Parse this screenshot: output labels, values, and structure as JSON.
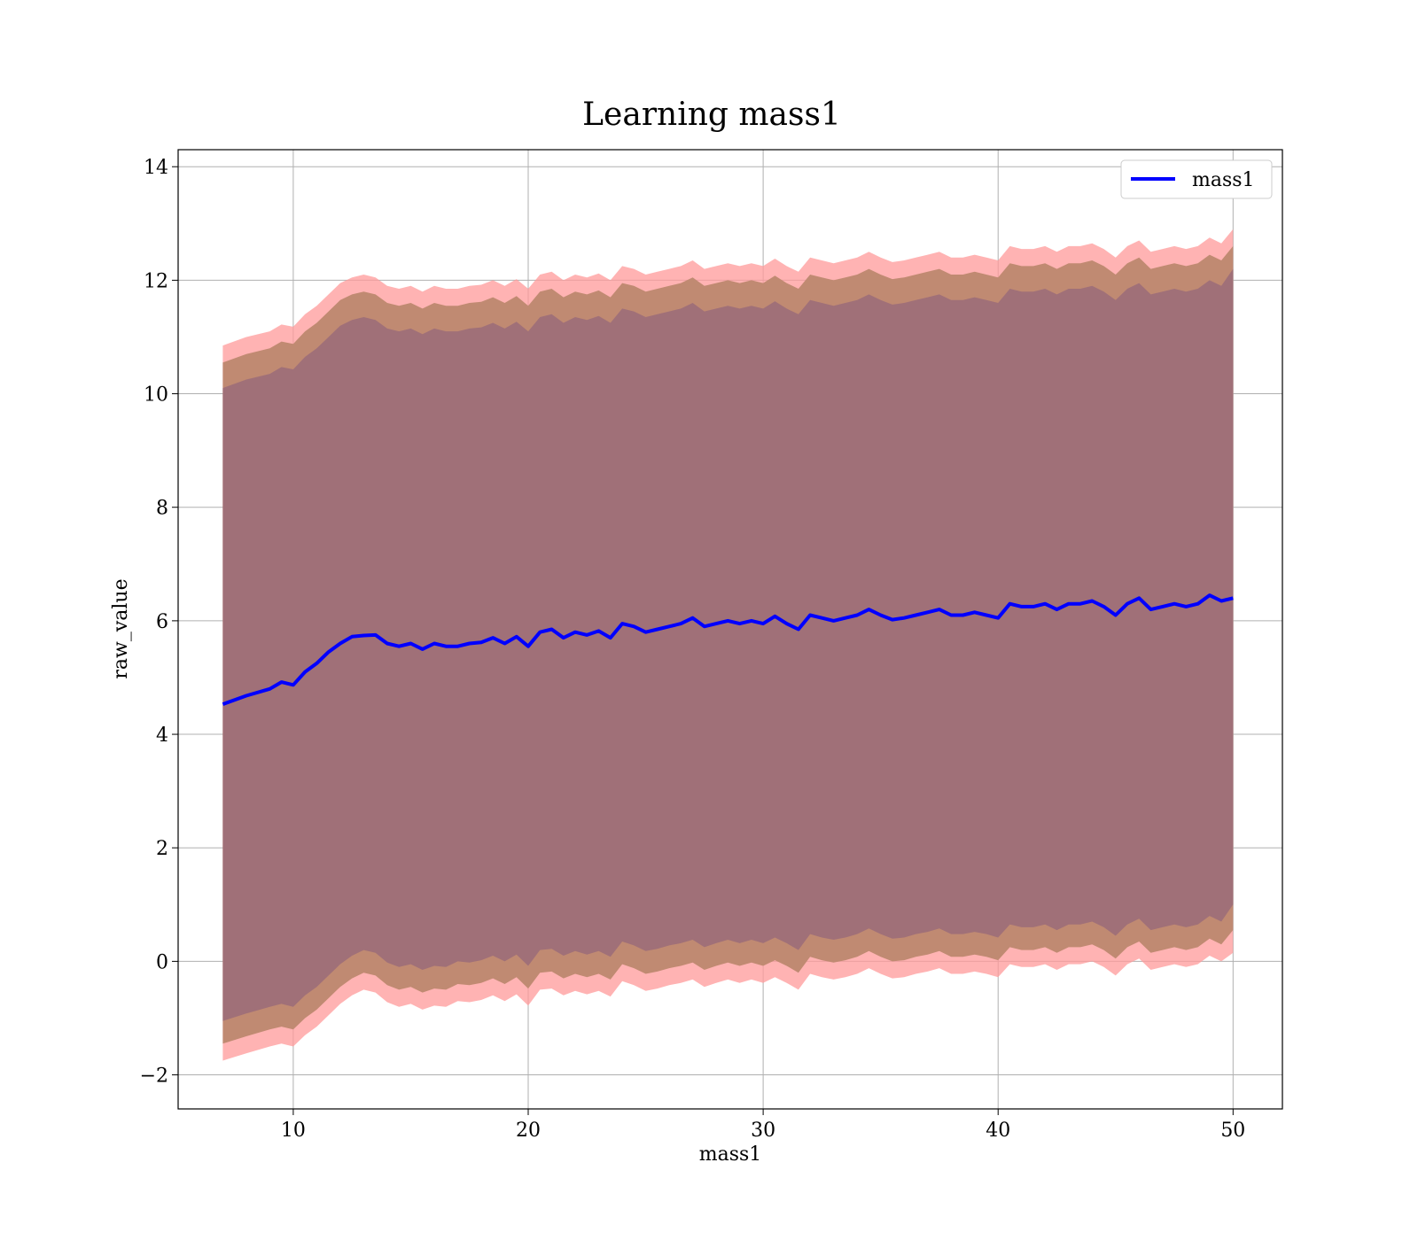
{
  "chart_data": {
    "type": "line",
    "title": "Learning mass1",
    "xlabel": "mass1",
    "ylabel": "raw_value",
    "xlim": [
      5.1,
      52.1
    ],
    "ylim": [
      -2.6,
      14.3
    ],
    "xticks": [
      10,
      20,
      30,
      40,
      50
    ],
    "yticks": [
      -2,
      0,
      2,
      4,
      6,
      8,
      10,
      12,
      14
    ],
    "xtick_labels": [
      "10",
      "20",
      "30",
      "40",
      "50"
    ],
    "ytick_labels": [
      "−2",
      "0",
      "2",
      "4",
      "6",
      "8",
      "10",
      "12",
      "14"
    ],
    "grid": true,
    "legend": {
      "position": "top-right",
      "entries": [
        "mass1"
      ]
    },
    "colors": {
      "line": "#0000ff",
      "outer_band": "#ff9999",
      "middle_band": "#c08a72",
      "inner_band": "#a07078"
    },
    "x": [
      7,
      8,
      9,
      9.5,
      10,
      10.5,
      11,
      11.5,
      12,
      12.5,
      13,
      13.5,
      14,
      14.5,
      15,
      15.5,
      16,
      16.5,
      17,
      17.5,
      18,
      18.5,
      19,
      19.5,
      20,
      20.5,
      21,
      21.5,
      22,
      22.5,
      23,
      23.5,
      24,
      24.5,
      25,
      25.5,
      26,
      26.5,
      27,
      27.5,
      28,
      28.5,
      29,
      29.5,
      30,
      30.5,
      31,
      31.5,
      32,
      32.5,
      33,
      33.5,
      34,
      34.5,
      35,
      35.5,
      36,
      36.5,
      37,
      37.5,
      38,
      38.5,
      39,
      39.5,
      40,
      40.5,
      41,
      41.5,
      42,
      42.5,
      43,
      43.5,
      44,
      44.5,
      45,
      45.5,
      46,
      46.5,
      47,
      47.5,
      48,
      48.5,
      49,
      49.5,
      50
    ],
    "series": [
      {
        "name": "mass1",
        "values": [
          4.53,
          4.68,
          4.8,
          4.92,
          4.87,
          5.1,
          5.25,
          5.45,
          5.6,
          5.72,
          5.74,
          5.75,
          5.6,
          5.55,
          5.6,
          5.5,
          5.6,
          5.55,
          5.55,
          5.6,
          5.62,
          5.7,
          5.6,
          5.72,
          5.55,
          5.8,
          5.85,
          5.7,
          5.8,
          5.75,
          5.82,
          5.7,
          5.95,
          5.9,
          5.8,
          5.85,
          5.9,
          5.95,
          6.05,
          5.9,
          5.95,
          6.0,
          5.95,
          6.0,
          5.95,
          6.08,
          5.95,
          5.85,
          6.1,
          6.05,
          6.0,
          6.05,
          6.1,
          6.2,
          6.1,
          6.02,
          6.05,
          6.1,
          6.15,
          6.2,
          6.1,
          6.1,
          6.15,
          6.1,
          6.05,
          6.3,
          6.25,
          6.25,
          6.3,
          6.2,
          6.3,
          6.3,
          6.35,
          6.25,
          6.1,
          6.3,
          6.4,
          6.2,
          6.25,
          6.3,
          6.25,
          6.3,
          6.45,
          6.35,
          6.4
        ]
      }
    ],
    "bands": [
      {
        "lower": [
          -1.75,
          -1.62,
          -1.5,
          -1.45,
          -1.5,
          -1.3,
          -1.15,
          -0.95,
          -0.75,
          -0.6,
          -0.5,
          -0.55,
          -0.72,
          -0.8,
          -0.75,
          -0.85,
          -0.78,
          -0.8,
          -0.7,
          -0.72,
          -0.68,
          -0.6,
          -0.7,
          -0.58,
          -0.78,
          -0.5,
          -0.48,
          -0.6,
          -0.52,
          -0.58,
          -0.52,
          -0.62,
          -0.35,
          -0.42,
          -0.52,
          -0.48,
          -0.42,
          -0.38,
          -0.32,
          -0.45,
          -0.38,
          -0.32,
          -0.38,
          -0.32,
          -0.38,
          -0.28,
          -0.38,
          -0.5,
          -0.22,
          -0.28,
          -0.32,
          -0.28,
          -0.22,
          -0.12,
          -0.22,
          -0.3,
          -0.28,
          -0.22,
          -0.18,
          -0.12,
          -0.22,
          -0.22,
          -0.18,
          -0.22,
          -0.28,
          -0.05,
          -0.1,
          -0.1,
          -0.05,
          -0.15,
          -0.05,
          -0.05,
          0.0,
          -0.1,
          -0.25,
          -0.05,
          0.05,
          -0.15,
          -0.1,
          -0.05,
          -0.1,
          -0.05,
          0.1,
          0.0,
          0.15
        ],
        "upper": [
          10.85,
          11.0,
          11.1,
          11.22,
          11.18,
          11.4,
          11.55,
          11.75,
          11.95,
          12.05,
          12.1,
          12.05,
          11.9,
          11.85,
          11.9,
          11.8,
          11.9,
          11.85,
          11.85,
          11.9,
          11.92,
          12.0,
          11.9,
          12.02,
          11.85,
          12.1,
          12.15,
          12.0,
          12.1,
          12.05,
          12.12,
          12.0,
          12.25,
          12.2,
          12.1,
          12.15,
          12.2,
          12.25,
          12.35,
          12.2,
          12.25,
          12.3,
          12.25,
          12.3,
          12.25,
          12.38,
          12.25,
          12.15,
          12.4,
          12.35,
          12.3,
          12.35,
          12.4,
          12.5,
          12.4,
          12.32,
          12.35,
          12.4,
          12.45,
          12.5,
          12.4,
          12.4,
          12.45,
          12.4,
          12.35,
          12.6,
          12.55,
          12.55,
          12.6,
          12.5,
          12.6,
          12.6,
          12.65,
          12.55,
          12.4,
          12.6,
          12.7,
          12.5,
          12.55,
          12.6,
          12.55,
          12.6,
          12.75,
          12.65,
          12.9
        ]
      },
      {
        "lower": [
          -1.45,
          -1.32,
          -1.2,
          -1.15,
          -1.2,
          -1.0,
          -0.85,
          -0.65,
          -0.45,
          -0.3,
          -0.2,
          -0.25,
          -0.42,
          -0.5,
          -0.45,
          -0.55,
          -0.48,
          -0.5,
          -0.4,
          -0.42,
          -0.38,
          -0.3,
          -0.4,
          -0.28,
          -0.48,
          -0.2,
          -0.18,
          -0.3,
          -0.22,
          -0.28,
          -0.22,
          -0.32,
          -0.05,
          -0.12,
          -0.22,
          -0.18,
          -0.12,
          -0.08,
          -0.02,
          -0.15,
          -0.08,
          -0.02,
          -0.08,
          -0.02,
          -0.08,
          0.02,
          -0.08,
          -0.2,
          0.08,
          0.02,
          -0.02,
          0.02,
          0.08,
          0.18,
          0.08,
          0.0,
          0.02,
          0.08,
          0.12,
          0.18,
          0.08,
          0.08,
          0.12,
          0.08,
          0.02,
          0.25,
          0.2,
          0.2,
          0.25,
          0.15,
          0.25,
          0.25,
          0.3,
          0.2,
          0.05,
          0.25,
          0.35,
          0.15,
          0.2,
          0.25,
          0.2,
          0.25,
          0.4,
          0.3,
          0.55
        ],
        "upper": [
          10.55,
          10.7,
          10.8,
          10.92,
          10.88,
          11.1,
          11.25,
          11.45,
          11.65,
          11.75,
          11.8,
          11.75,
          11.6,
          11.55,
          11.6,
          11.5,
          11.6,
          11.55,
          11.55,
          11.6,
          11.62,
          11.7,
          11.6,
          11.72,
          11.55,
          11.8,
          11.85,
          11.7,
          11.8,
          11.75,
          11.82,
          11.7,
          11.95,
          11.9,
          11.8,
          11.85,
          11.9,
          11.95,
          12.05,
          11.9,
          11.95,
          12.0,
          11.95,
          12.0,
          11.95,
          12.08,
          11.95,
          11.85,
          12.1,
          12.05,
          12.0,
          12.05,
          12.1,
          12.2,
          12.1,
          12.02,
          12.05,
          12.1,
          12.15,
          12.2,
          12.1,
          12.1,
          12.15,
          12.1,
          12.05,
          12.3,
          12.25,
          12.25,
          12.3,
          12.2,
          12.3,
          12.3,
          12.35,
          12.25,
          12.1,
          12.3,
          12.4,
          12.2,
          12.25,
          12.3,
          12.25,
          12.3,
          12.45,
          12.35,
          12.6
        ]
      },
      {
        "lower": [
          -1.05,
          -0.92,
          -0.8,
          -0.75,
          -0.8,
          -0.6,
          -0.45,
          -0.25,
          -0.05,
          0.1,
          0.2,
          0.15,
          -0.02,
          -0.1,
          -0.05,
          -0.15,
          -0.08,
          -0.1,
          0.0,
          -0.02,
          0.02,
          0.1,
          0.0,
          0.12,
          -0.08,
          0.2,
          0.22,
          0.1,
          0.18,
          0.12,
          0.18,
          0.08,
          0.35,
          0.28,
          0.18,
          0.22,
          0.28,
          0.32,
          0.38,
          0.25,
          0.32,
          0.38,
          0.32,
          0.38,
          0.32,
          0.42,
          0.32,
          0.2,
          0.48,
          0.42,
          0.38,
          0.42,
          0.48,
          0.58,
          0.48,
          0.4,
          0.42,
          0.48,
          0.52,
          0.58,
          0.48,
          0.48,
          0.52,
          0.48,
          0.42,
          0.65,
          0.6,
          0.6,
          0.65,
          0.55,
          0.65,
          0.65,
          0.7,
          0.6,
          0.45,
          0.65,
          0.75,
          0.55,
          0.6,
          0.65,
          0.6,
          0.65,
          0.8,
          0.7,
          1.0
        ],
        "upper": [
          10.1,
          10.25,
          10.35,
          10.47,
          10.43,
          10.65,
          10.8,
          11.0,
          11.2,
          11.3,
          11.35,
          11.3,
          11.15,
          11.1,
          11.15,
          11.05,
          11.15,
          11.1,
          11.1,
          11.15,
          11.17,
          11.25,
          11.15,
          11.27,
          11.1,
          11.35,
          11.4,
          11.25,
          11.35,
          11.3,
          11.37,
          11.25,
          11.5,
          11.45,
          11.35,
          11.4,
          11.45,
          11.5,
          11.6,
          11.45,
          11.5,
          11.55,
          11.5,
          11.55,
          11.5,
          11.63,
          11.5,
          11.4,
          11.65,
          11.6,
          11.55,
          11.6,
          11.65,
          11.75,
          11.65,
          11.57,
          11.6,
          11.65,
          11.7,
          11.75,
          11.65,
          11.65,
          11.7,
          11.65,
          11.6,
          11.85,
          11.8,
          11.8,
          11.85,
          11.75,
          11.85,
          11.85,
          11.9,
          11.8,
          11.65,
          11.85,
          11.95,
          11.75,
          11.8,
          11.85,
          11.8,
          11.85,
          12.0,
          11.9,
          12.2
        ]
      }
    ]
  }
}
